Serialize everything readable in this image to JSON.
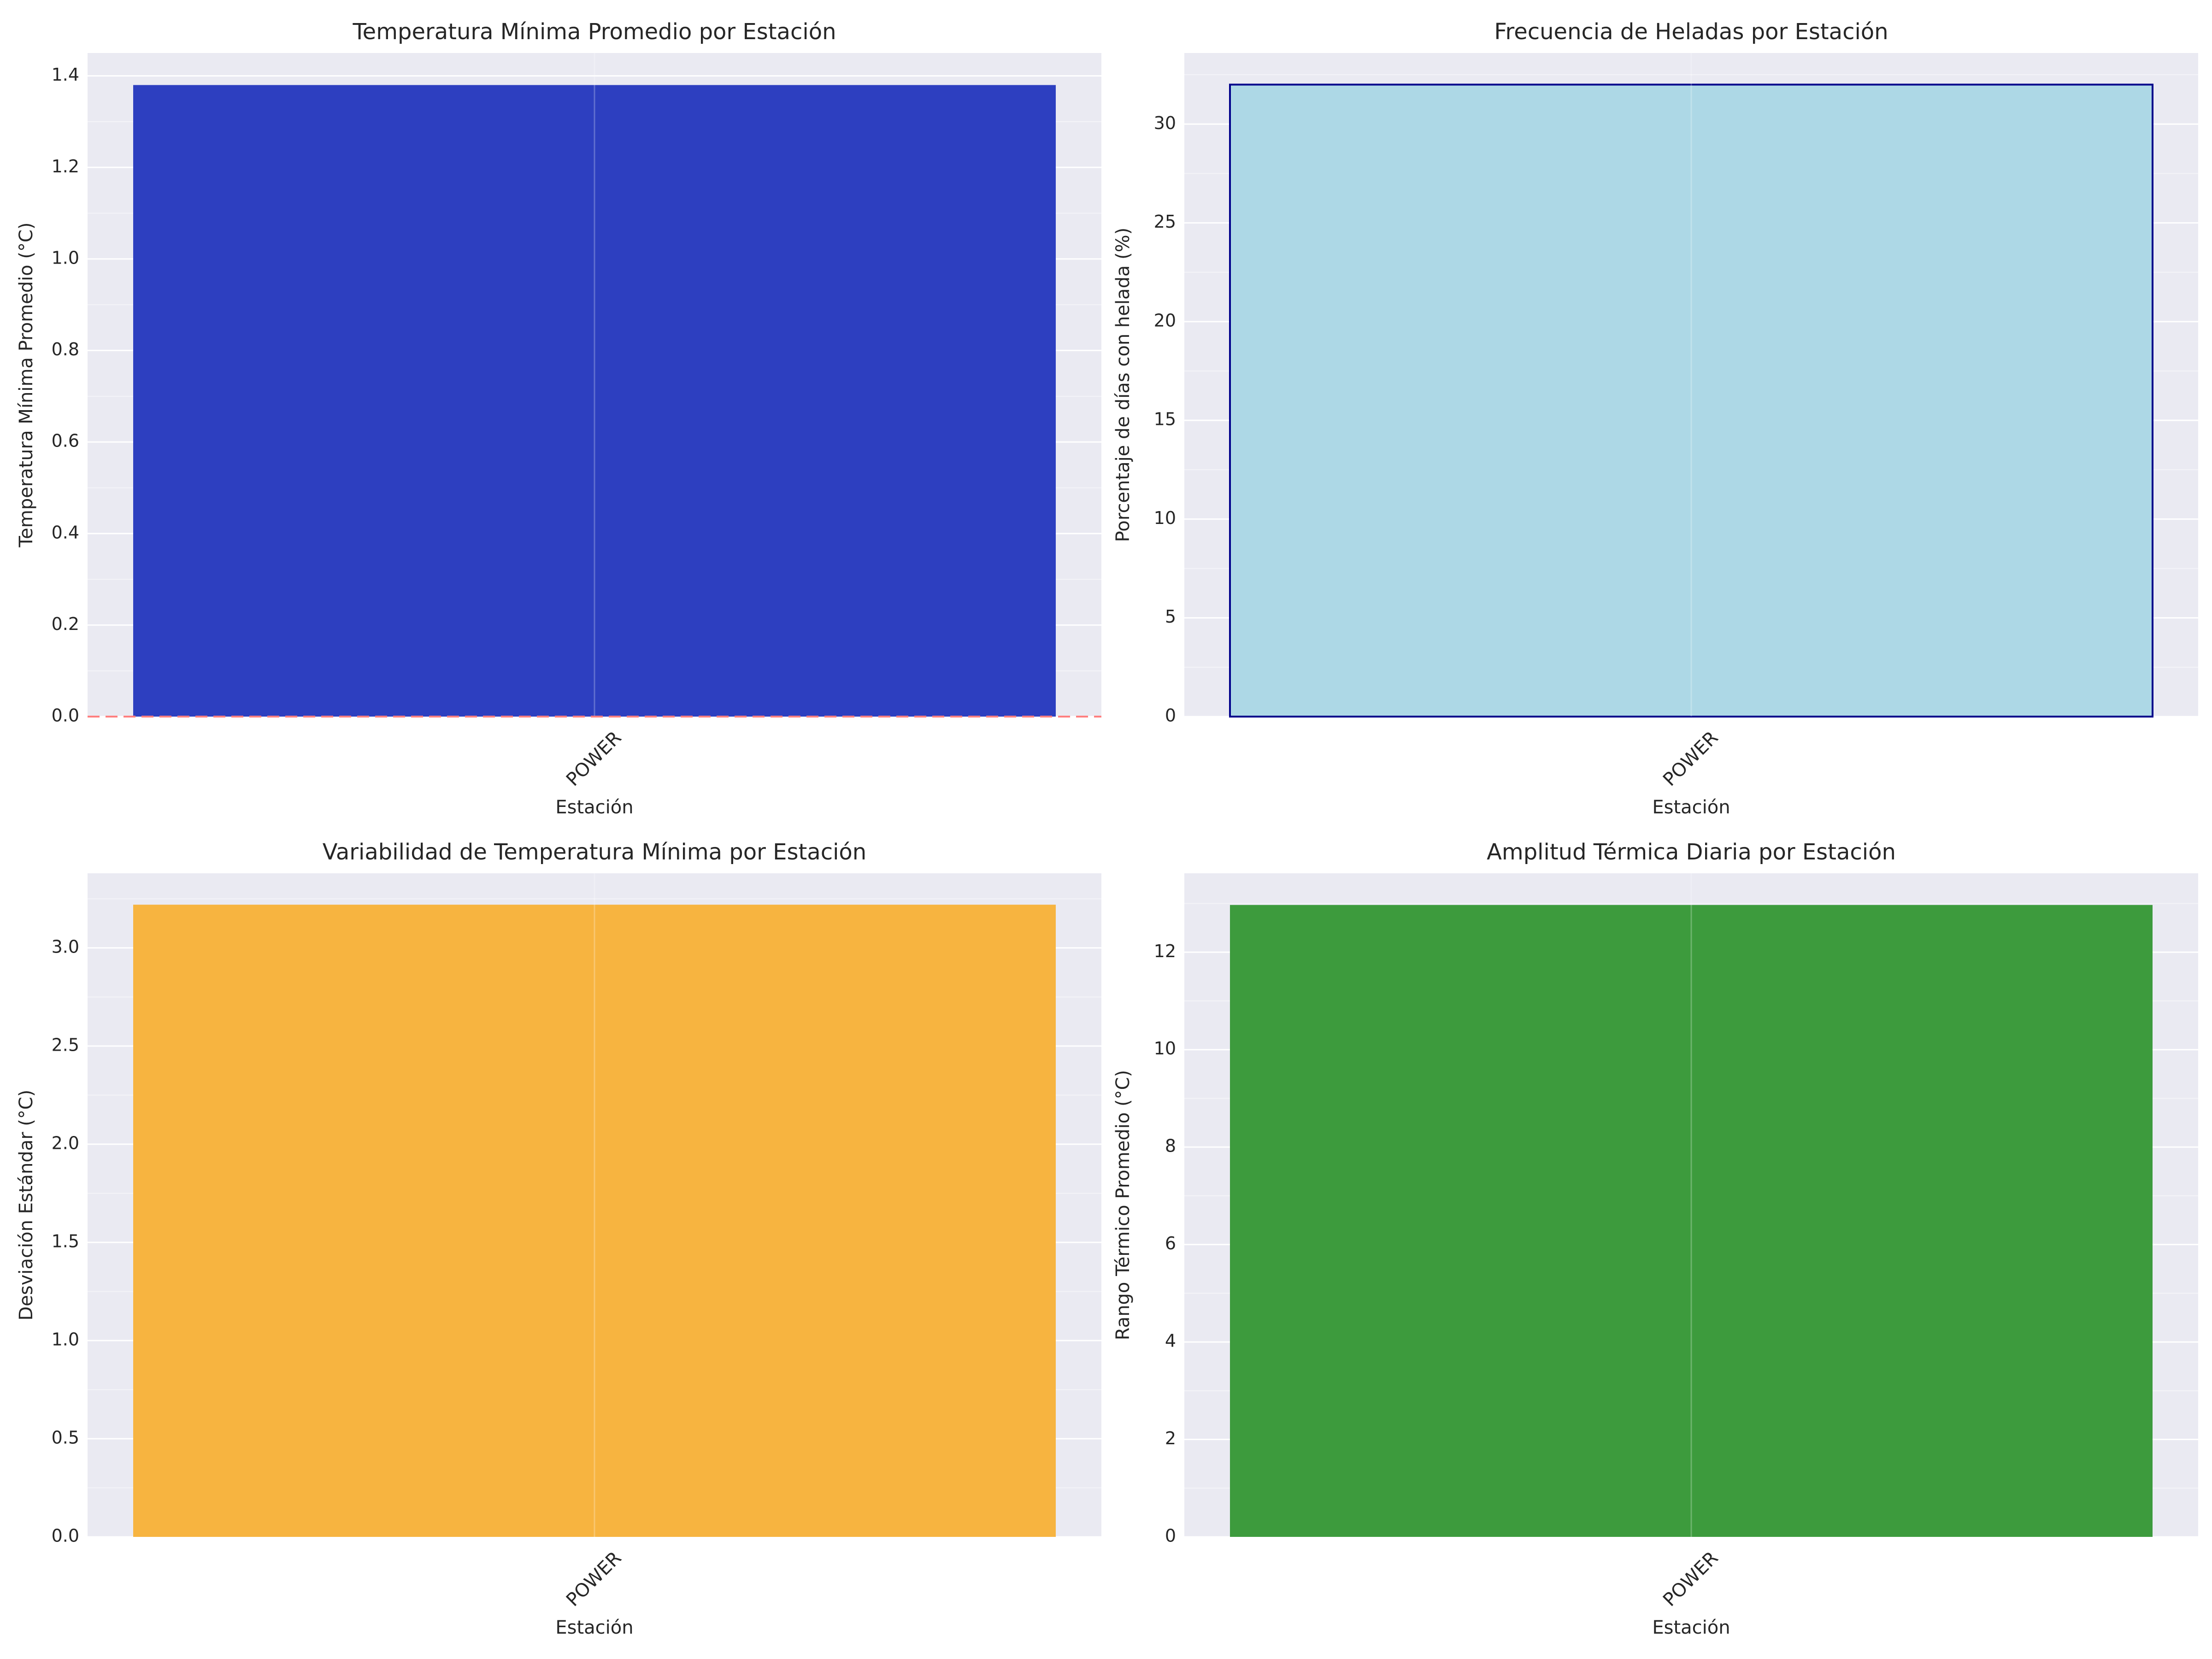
{
  "chart_data": [
    {
      "type": "bar",
      "title": "Temperatura Mínima Promedio por Estación",
      "xlabel": "Estación",
      "ylabel": "Temperatura Mínima Promedio (°C)",
      "categories": [
        "POWER"
      ],
      "values": [
        1.38
      ],
      "ylim": [
        0,
        1.45
      ],
      "yticks": [
        0.0,
        0.2,
        0.4,
        0.6,
        0.8,
        1.0,
        1.2,
        1.4
      ],
      "ytick_decimals": 1,
      "bar_color": "#2d3fc0",
      "bar_edge_color": "",
      "reference_line": {
        "y": 0,
        "color": "#ff7f7f",
        "style": "dashed"
      },
      "grid": true
    },
    {
      "type": "bar",
      "title": "Frecuencia de Heladas por Estación",
      "xlabel": "Estación",
      "ylabel": "Porcentaje de días con helada (%)",
      "categories": [
        "POWER"
      ],
      "values": [
        32.0
      ],
      "ylim": [
        0,
        33.6
      ],
      "yticks": [
        0,
        5,
        10,
        15,
        20,
        25,
        30
      ],
      "ytick_decimals": 0,
      "bar_color": "#add8e6",
      "bar_edge_color": "#00008b",
      "grid": true
    },
    {
      "type": "bar",
      "title": "Variabilidad de Temperatura Mínima por Estación",
      "xlabel": "Estación",
      "ylabel": "Desviación Estándar (°C)",
      "categories": [
        "POWER"
      ],
      "values": [
        3.22
      ],
      "ylim": [
        0,
        3.38
      ],
      "yticks": [
        0.0,
        0.5,
        1.0,
        1.5,
        2.0,
        2.5,
        3.0
      ],
      "ytick_decimals": 1,
      "bar_color": "#f7b440",
      "bar_edge_color": "",
      "grid": true
    },
    {
      "type": "bar",
      "title": "Amplitud Térmica Diaria por Estación",
      "xlabel": "Estación",
      "ylabel": "Rango Térmico Promedio (°C)",
      "categories": [
        "POWER"
      ],
      "values": [
        12.97
      ],
      "ylim": [
        0,
        13.62
      ],
      "yticks": [
        0,
        2,
        4,
        6,
        8,
        10,
        12
      ],
      "ytick_decimals": 0,
      "bar_color": "#3d9b3d",
      "bar_edge_color": "",
      "grid": true
    }
  ]
}
